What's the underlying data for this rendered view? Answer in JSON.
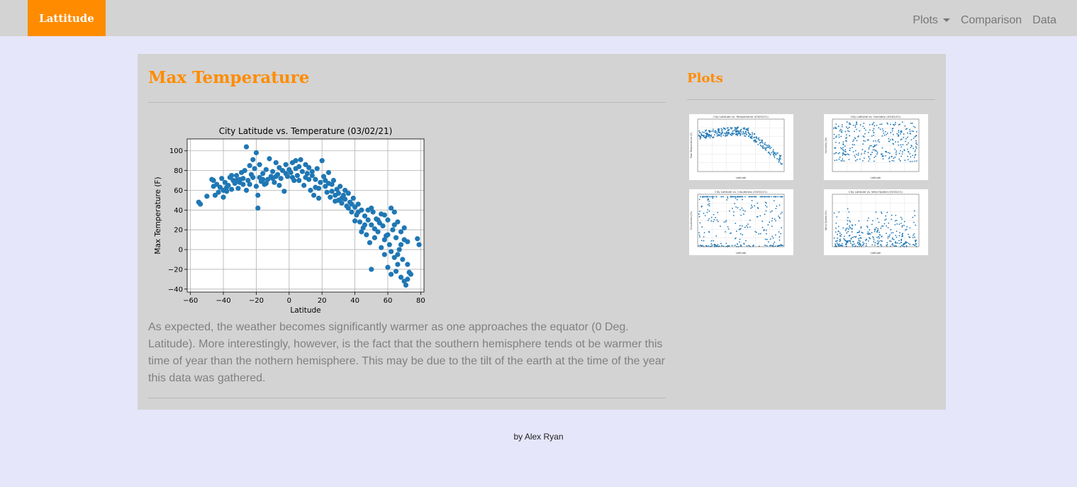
{
  "nav": {
    "brand": "Lattitude",
    "links": [
      {
        "label": "Plots",
        "dropdown": true
      },
      {
        "label": "Comparison"
      },
      {
        "label": "Data"
      }
    ]
  },
  "main": {
    "title": "Max Temperature",
    "description": "As expected, the weather becomes significantly warmer as one approaches the equator (0 Deg. Latitude). More interestingly, however, is the fact that the southern hemisphere tends ot be warmer this time of year than the nothern hemisphere. This may be due to the tilt of the earth at the time of the year this data was gathered."
  },
  "sidebar": {
    "title": "Plots",
    "thumbnails": [
      {
        "title": "City Latitude vs. Temperature (03/02/21)",
        "ylabel": "Max Temperature (F)",
        "xlabel": "Latitude"
      },
      {
        "title": "City Latitude vs. Humidity (03/02/21)",
        "ylabel": "Humidity (%)",
        "xlabel": "Latitude"
      },
      {
        "title": "City Latitude vs. Cloudiness (03/02/21)",
        "ylabel": "Cloudiness (%)",
        "xlabel": "Latitude"
      },
      {
        "title": "City Latitude vs. Wind Speed (03/02/21)",
        "ylabel": "Wind Speed (%)",
        "xlabel": "Latitude"
      }
    ]
  },
  "footer": {
    "text": "by Alex Ryan"
  },
  "colors": {
    "accent": "#ff8c00",
    "marker": "#1f77b4",
    "panel": "#d3d3d3",
    "page": "#e6e6fa"
  },
  "chart_data": {
    "type": "scatter",
    "title": "City Latitude vs. Temperature (03/02/21)",
    "xlabel": "Latitude",
    "ylabel": "Max Temperature (F)",
    "xlim": [
      -62,
      82
    ],
    "ylim": [
      -43,
      112
    ],
    "xticks": [
      -60,
      -40,
      -20,
      0,
      20,
      40,
      60,
      80
    ],
    "yticks": [
      -40,
      -20,
      0,
      20,
      40,
      60,
      80,
      100
    ],
    "grid": true,
    "points": [
      [
        -55,
        48
      ],
      [
        -54,
        46
      ],
      [
        -46,
        70
      ],
      [
        -46,
        64
      ],
      [
        -45,
        55
      ],
      [
        -43,
        58
      ],
      [
        -42,
        63
      ],
      [
        -41,
        72
      ],
      [
        -40,
        53
      ],
      [
        -39,
        68
      ],
      [
        -38,
        59
      ],
      [
        -37,
        65
      ],
      [
        -36,
        73
      ],
      [
        -35,
        61
      ],
      [
        -34,
        70
      ],
      [
        -33,
        67
      ],
      [
        -32,
        75
      ],
      [
        -31,
        62
      ],
      [
        -30,
        71
      ],
      [
        -29,
        78
      ],
      [
        -28,
        66
      ],
      [
        -27,
        80
      ],
      [
        -26,
        104
      ],
      [
        -25,
        70
      ],
      [
        -24,
        85
      ],
      [
        -23,
        76
      ],
      [
        -22,
        91
      ],
      [
        -21,
        82
      ],
      [
        -20,
        98
      ],
      [
        -20,
        64
      ],
      [
        -19,
        55
      ],
      [
        -19,
        42
      ],
      [
        -18,
        73
      ],
      [
        -17,
        69
      ],
      [
        -16,
        77
      ],
      [
        -15,
        66
      ],
      [
        -14,
        81
      ],
      [
        -13,
        71
      ],
      [
        -12,
        92
      ],
      [
        -11,
        74
      ],
      [
        -10,
        79
      ],
      [
        -9,
        68
      ],
      [
        -8,
        88
      ],
      [
        -7,
        76
      ],
      [
        -6,
        83
      ],
      [
        -5,
        72
      ],
      [
        -4,
        80
      ],
      [
        -3,
        59
      ],
      [
        -2,
        77
      ],
      [
        -1,
        74
      ],
      [
        0,
        81
      ],
      [
        1,
        78
      ],
      [
        2,
        88
      ],
      [
        3,
        70
      ],
      [
        4,
        90
      ],
      [
        5,
        75
      ],
      [
        6,
        84
      ],
      [
        7,
        91
      ],
      [
        8,
        79
      ],
      [
        9,
        65
      ],
      [
        10,
        86
      ],
      [
        11,
        77
      ],
      [
        12,
        83
      ],
      [
        13,
        60
      ],
      [
        14,
        75
      ],
      [
        15,
        55
      ],
      [
        16,
        71
      ],
      [
        17,
        82
      ],
      [
        18,
        52
      ],
      [
        19,
        68
      ],
      [
        20,
        90
      ],
      [
        21,
        74
      ],
      [
        22,
        64
      ],
      [
        23,
        58
      ],
      [
        24,
        78
      ],
      [
        25,
        53
      ],
      [
        26,
        66
      ],
      [
        27,
        70
      ],
      [
        28,
        49
      ],
      [
        29,
        61
      ],
      [
        30,
        57
      ],
      [
        31,
        64
      ],
      [
        32,
        47
      ],
      [
        33,
        55
      ],
      [
        34,
        51
      ],
      [
        35,
        44
      ],
      [
        36,
        57
      ],
      [
        37,
        48
      ],
      [
        38,
        38
      ],
      [
        39,
        52
      ],
      [
        40,
        43
      ],
      [
        41,
        35
      ],
      [
        42,
        46
      ],
      [
        43,
        28
      ],
      [
        44,
        40
      ],
      [
        45,
        22
      ],
      [
        46,
        34
      ],
      [
        47,
        15
      ],
      [
        48,
        30
      ],
      [
        49,
        7
      ],
      [
        50,
        -20
      ],
      [
        50,
        25
      ],
      [
        51,
        38
      ],
      [
        52,
        12
      ],
      [
        53,
        31
      ],
      [
        54,
        18
      ],
      [
        55,
        27
      ],
      [
        56,
        2
      ],
      [
        57,
        24
      ],
      [
        58,
        -5
      ],
      [
        58,
        35
      ],
      [
        59,
        14
      ],
      [
        60,
        -18
      ],
      [
        60,
        30
      ],
      [
        61,
        5
      ],
      [
        62,
        42
      ],
      [
        62,
        -25
      ],
      [
        63,
        20
      ],
      [
        64,
        -8
      ],
      [
        64,
        38
      ],
      [
        65,
        -22
      ],
      [
        65,
        12
      ],
      [
        66,
        -15
      ],
      [
        66,
        28
      ],
      [
        67,
        0
      ],
      [
        68,
        -28
      ],
      [
        68,
        18
      ],
      [
        69,
        -10
      ],
      [
        70,
        -32
      ],
      [
        70,
        22
      ],
      [
        71,
        -36
      ],
      [
        72,
        -30
      ],
      [
        72,
        8
      ],
      [
        73,
        -23
      ],
      [
        78,
        11
      ],
      [
        79,
        5
      ],
      [
        -47,
        71
      ],
      [
        -44,
        66
      ],
      [
        -38,
        63
      ],
      [
        -35,
        75
      ],
      [
        -30,
        68
      ],
      [
        -26,
        60
      ],
      [
        -22,
        73
      ],
      [
        -18,
        86
      ],
      [
        -14,
        67
      ],
      [
        -10,
        72
      ],
      [
        -6,
        65
      ],
      [
        -2,
        86
      ],
      [
        2,
        73
      ],
      [
        6,
        70
      ],
      [
        10,
        73
      ],
      [
        14,
        79
      ],
      [
        18,
        62
      ],
      [
        22,
        70
      ],
      [
        26,
        59
      ],
      [
        30,
        50
      ],
      [
        34,
        60
      ],
      [
        38,
        46
      ],
      [
        42,
        38
      ],
      [
        46,
        25
      ],
      [
        50,
        42
      ],
      [
        54,
        30
      ],
      [
        58,
        10
      ],
      [
        62,
        -2
      ],
      [
        66,
        -5
      ],
      [
        70,
        10
      ],
      [
        74,
        -25
      ],
      [
        -40,
        60
      ],
      [
        -32,
        70
      ],
      [
        -28,
        72
      ],
      [
        -24,
        66
      ],
      [
        -16,
        71
      ],
      [
        -8,
        74
      ],
      [
        4,
        82
      ],
      [
        12,
        71
      ],
      [
        16,
        63
      ],
      [
        24,
        67
      ],
      [
        28,
        55
      ],
      [
        32,
        52
      ],
      [
        36,
        42
      ],
      [
        40,
        29
      ],
      [
        44,
        18
      ],
      [
        48,
        40
      ],
      [
        52,
        21
      ],
      [
        56,
        36
      ],
      [
        60,
        15
      ],
      [
        64,
        25
      ],
      [
        68,
        5
      ],
      [
        72,
        -15
      ],
      [
        -50,
        54
      ]
    ]
  }
}
